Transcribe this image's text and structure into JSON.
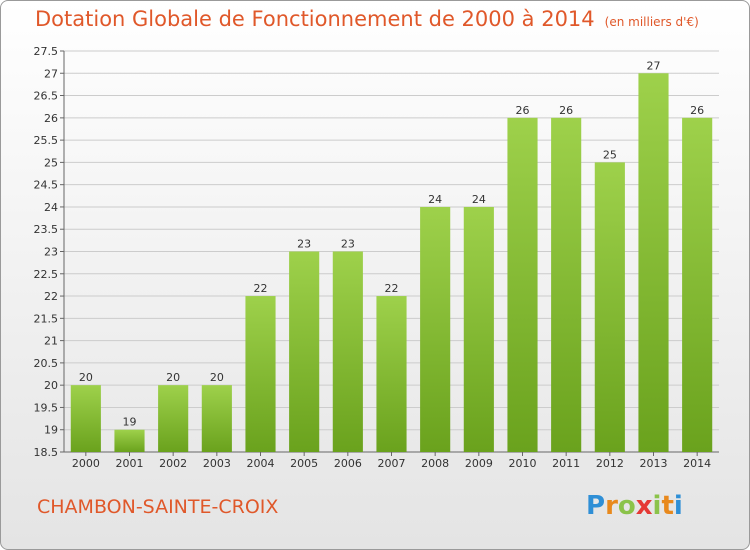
{
  "header": {
    "title": "Dotation Globale de Fonctionnement de 2000 à 2014",
    "subtitle": "(en milliers d'€)"
  },
  "footer": {
    "commune": "CHAMBON-SAINTE-CROIX",
    "logo": [
      "P",
      "r",
      "o",
      "x",
      "i",
      "t",
      "i"
    ],
    "logo_colors": [
      "#2f8fd6",
      "#e8891d",
      "#8bc34a",
      "#e53935",
      "#8bc34a",
      "#e8891d",
      "#2f8fd6"
    ]
  },
  "colors": {
    "bar_top": "#9ed14b",
    "bar_bottom": "#6aa21d",
    "grid": "#cccccc",
    "title": "#e0582a"
  },
  "chart_data": {
    "type": "bar",
    "title": "Dotation Globale de Fonctionnement de 2000 à 2014",
    "subtitle": "(en milliers d'€)",
    "categories": [
      "2000",
      "2001",
      "2002",
      "2003",
      "2004",
      "2005",
      "2006",
      "2007",
      "2008",
      "2009",
      "2010",
      "2011",
      "2012",
      "2013",
      "2014"
    ],
    "values": [
      20,
      19,
      20,
      20,
      22,
      23,
      23,
      22,
      24,
      24,
      26,
      26,
      25,
      27,
      26
    ],
    "ylim": [
      18.5,
      27.5
    ],
    "yticks": [
      "18.5",
      "19",
      "19.5",
      "20",
      "20.5",
      "21",
      "21.5",
      "22",
      "22.5",
      "23",
      "23.5",
      "24",
      "24.5",
      "25",
      "25.5",
      "26",
      "26.5",
      "27",
      "27.5"
    ],
    "grid": true,
    "xlabel": "",
    "ylabel": ""
  }
}
